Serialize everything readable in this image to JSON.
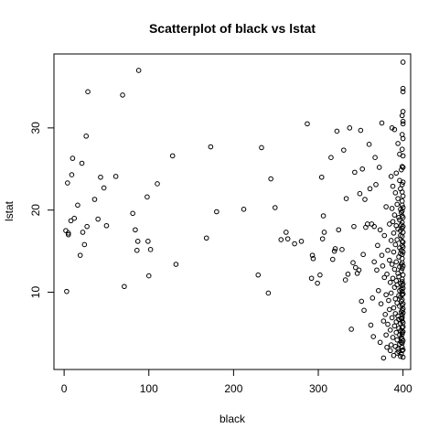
{
  "chart_data": {
    "type": "scatter",
    "title": "Scatterplot of black vs lstat",
    "xlabel": "black",
    "ylabel": "lstat",
    "xlim": [
      -12,
      409
    ],
    "ylim": [
      0.6,
      39
    ],
    "xticks": [
      0,
      100,
      200,
      300,
      400
    ],
    "yticks": [
      10,
      20,
      30
    ],
    "grid": false,
    "legend": "none",
    "marker": "open-circle",
    "color": "#000000",
    "points": [
      [
        2,
        17.5
      ],
      [
        3,
        10.1
      ],
      [
        4,
        23.3
      ],
      [
        5,
        17
      ],
      [
        5,
        17.2
      ],
      [
        8,
        18.7
      ],
      [
        9,
        24.3
      ],
      [
        10,
        26.3
      ],
      [
        12,
        19
      ],
      [
        16,
        20.6
      ],
      [
        19,
        14.5
      ],
      [
        21,
        25.7
      ],
      [
        22,
        17.3
      ],
      [
        24,
        15.8
      ],
      [
        26,
        29
      ],
      [
        27,
        18
      ],
      [
        28,
        34.4
      ],
      [
        36,
        21.3
      ],
      [
        40,
        18.9
      ],
      [
        43,
        24
      ],
      [
        47,
        22.7
      ],
      [
        50,
        18.1
      ],
      [
        61,
        24.1
      ],
      [
        69,
        34
      ],
      [
        71,
        10.7
      ],
      [
        81,
        19.6
      ],
      [
        84,
        17.6
      ],
      [
        86,
        15.1
      ],
      [
        87,
        16.2
      ],
      [
        88,
        37
      ],
      [
        98,
        21.6
      ],
      [
        99,
        16.2
      ],
      [
        100,
        12
      ],
      [
        102,
        15.2
      ],
      [
        110,
        23.2
      ],
      [
        128,
        26.6
      ],
      [
        132,
        13.4
      ],
      [
        168,
        16.6
      ],
      [
        173,
        27.7
      ],
      [
        180,
        19.8
      ],
      [
        212,
        20.1
      ],
      [
        229,
        12.1
      ],
      [
        233,
        27.6
      ],
      [
        241,
        9.9
      ],
      [
        244,
        23.8
      ],
      [
        249,
        20.3
      ],
      [
        256,
        16.4
      ],
      [
        262,
        17.3
      ],
      [
        264,
        16.5
      ],
      [
        272,
        15.9
      ],
      [
        280,
        16.2
      ],
      [
        287,
        30.5
      ],
      [
        292,
        11.7
      ],
      [
        293,
        14.5
      ],
      [
        294,
        14.1
      ],
      [
        299,
        11.1
      ],
      [
        302,
        12.1
      ],
      [
        304,
        24
      ],
      [
        305,
        16.5
      ],
      [
        306,
        19.3
      ],
      [
        307,
        17.3
      ],
      [
        315,
        26.4
      ],
      [
        317,
        14
      ],
      [
        319,
        15
      ],
      [
        320,
        15.3
      ],
      [
        322,
        29.6
      ],
      [
        324,
        17.6
      ],
      [
        328,
        15.2
      ],
      [
        330,
        27.3
      ],
      [
        332,
        11.5
      ],
      [
        333,
        21.4
      ],
      [
        335,
        12.2
      ],
      [
        337,
        30
      ],
      [
        339,
        5.5
      ],
      [
        341,
        13.6
      ],
      [
        342,
        18
      ],
      [
        343,
        24.6
      ],
      [
        344,
        13
      ],
      [
        346,
        12.3
      ],
      [
        348,
        12.7
      ],
      [
        349,
        22
      ],
      [
        350,
        29.7
      ],
      [
        351,
        8.9
      ],
      [
        352,
        25
      ],
      [
        353,
        14.6
      ],
      [
        354,
        7.8
      ],
      [
        355,
        21.3
      ],
      [
        356,
        17.9
      ],
      [
        358,
        18.3
      ],
      [
        360,
        28
      ],
      [
        361,
        22.6
      ],
      [
        362,
        6
      ],
      [
        363,
        18.3
      ],
      [
        364,
        9.3
      ],
      [
        365,
        4.6
      ],
      [
        366,
        18
      ],
      [
        366,
        13.7
      ],
      [
        367,
        26.4
      ],
      [
        368,
        23.1
      ],
      [
        369,
        12.7
      ],
      [
        370,
        15.7
      ],
      [
        371,
        10.2
      ],
      [
        372,
        25.2
      ],
      [
        373,
        3.9
      ],
      [
        373,
        17.6
      ],
      [
        374,
        8.6
      ],
      [
        375,
        30.6
      ],
      [
        375,
        14.5
      ],
      [
        376,
        13.2
      ],
      [
        377,
        6.5
      ],
      [
        377,
        2
      ],
      [
        378,
        16.9
      ],
      [
        378,
        11.8
      ],
      [
        379,
        7.3
      ],
      [
        380,
        9.7
      ],
      [
        380,
        4.8
      ],
      [
        380,
        20.4
      ],
      [
        381,
        12.2
      ],
      [
        381,
        3.3
      ],
      [
        382,
        15.1
      ],
      [
        382,
        6.1
      ],
      [
        383,
        9
      ],
      [
        384,
        18.3
      ],
      [
        384,
        13.9
      ],
      [
        384,
        7.9
      ],
      [
        385,
        5.4
      ],
      [
        385,
        11.2
      ],
      [
        385,
        2.9
      ],
      [
        386,
        24.1
      ],
      [
        386,
        16.3
      ],
      [
        386,
        9.9
      ],
      [
        386,
        3.6
      ],
      [
        387,
        30
      ],
      [
        387,
        20.2
      ],
      [
        387,
        13.4
      ],
      [
        387,
        6.9
      ],
      [
        388,
        18.6
      ],
      [
        388,
        11.7
      ],
      [
        388,
        4.5
      ],
      [
        388,
        22.9
      ],
      [
        389,
        14.9
      ],
      [
        389,
        8.1
      ],
      [
        389,
        2.3
      ],
      [
        389,
        17.2
      ],
      [
        390,
        10.6
      ],
      [
        390,
        5.9
      ],
      [
        390,
        29.8
      ],
      [
        390,
        19.4
      ],
      [
        390,
        12.8
      ],
      [
        391,
        7.4
      ],
      [
        391,
        3.4
      ],
      [
        391,
        22.1
      ],
      [
        391,
        15.8
      ],
      [
        391,
        9.2
      ],
      [
        392,
        5.1
      ],
      [
        392,
        18.1
      ],
      [
        392,
        11.4
      ],
      [
        392,
        6.4
      ],
      [
        392,
        24.5
      ],
      [
        392,
        13.7
      ],
      [
        393,
        8.7
      ],
      [
        393,
        2.6
      ],
      [
        393,
        20.7
      ],
      [
        393,
        16.4
      ],
      [
        393,
        10.9
      ],
      [
        393,
        4.2
      ],
      [
        394,
        28.1
      ],
      [
        394,
        17.7
      ],
      [
        394,
        12.3
      ],
      [
        394,
        7.1
      ],
      [
        394,
        3.1
      ],
      [
        394,
        21.4
      ],
      [
        395,
        14.3
      ],
      [
        395,
        9.6
      ],
      [
        395,
        5.6
      ],
      [
        395,
        19.1
      ],
      [
        395,
        11.9
      ],
      [
        395,
        6.7
      ],
      [
        395,
        2.8
      ],
      [
        396,
        23.6
      ],
      [
        396,
        15.4
      ],
      [
        396,
        10.2
      ],
      [
        396,
        4.8
      ],
      [
        396,
        18.8
      ],
      [
        396,
        13.1
      ],
      [
        396,
        8.3
      ],
      [
        396,
        3.7
      ],
      [
        396,
        26.8
      ],
      [
        397,
        16.9
      ],
      [
        397,
        11.1
      ],
      [
        397,
        6.2
      ],
      [
        397,
        20.1
      ],
      [
        397,
        14.7
      ],
      [
        397,
        9.4
      ],
      [
        397,
        5.3
      ],
      [
        397,
        2.2
      ],
      [
        397,
        22.6
      ],
      [
        397,
        17.5
      ],
      [
        398,
        12.6
      ],
      [
        398,
        7.6
      ],
      [
        398,
        3.9
      ],
      [
        398,
        19.7
      ],
      [
        398,
        15.1
      ],
      [
        398,
        10.4
      ],
      [
        398,
        6.8
      ],
      [
        398,
        24.9
      ],
      [
        398,
        18.2
      ],
      [
        398,
        13.4
      ],
      [
        398,
        8.9
      ],
      [
        398,
        4.5
      ],
      [
        398,
        2.5
      ],
      [
        399,
        21.1
      ],
      [
        399,
        16.2
      ],
      [
        399,
        11.6
      ],
      [
        399,
        7.8
      ],
      [
        399,
        5.1
      ],
      [
        399,
        29.2
      ],
      [
        399,
        19.3
      ],
      [
        399,
        14.1
      ],
      [
        399,
        9.7
      ],
      [
        399,
        6.5
      ],
      [
        399,
        3.3
      ],
      [
        399,
        23.1
      ],
      [
        399,
        17.8
      ],
      [
        399,
        12.9
      ],
      [
        399,
        8.4
      ],
      [
        399,
        4.9
      ],
      [
        399,
        27.4
      ],
      [
        399,
        20.6
      ],
      [
        399,
        15.7
      ],
      [
        399,
        10.8
      ],
      [
        399,
        7.2
      ],
      [
        399,
        2.9
      ],
      [
        399,
        18.5
      ],
      [
        399,
        13.6
      ],
      [
        399,
        9.1
      ],
      [
        399,
        5.7
      ],
      [
        399,
        31.5
      ],
      [
        399,
        22.2
      ],
      [
        399,
        16.8
      ],
      [
        399,
        11.3
      ],
      [
        399,
        6.9
      ],
      [
        399,
        3.8
      ],
      [
        399,
        25.3
      ],
      [
        399,
        19.9
      ],
      [
        399,
        14.6
      ],
      [
        399,
        10.1
      ],
      [
        399,
        4.3
      ],
      [
        400,
        38
      ],
      [
        400,
        34.4
      ],
      [
        400,
        34.8
      ],
      [
        400,
        30.8
      ],
      [
        400,
        30.5
      ],
      [
        400,
        32
      ],
      [
        400,
        28.7
      ],
      [
        400,
        26.6
      ],
      [
        400,
        25.2
      ],
      [
        400,
        23.4
      ],
      [
        400,
        21.7
      ],
      [
        400,
        20.3
      ],
      [
        400,
        19.1
      ],
      [
        400,
        17.3
      ],
      [
        400,
        16.1
      ],
      [
        400,
        14.9
      ],
      [
        400,
        13.2
      ],
      [
        400,
        12.1
      ],
      [
        400,
        11
      ],
      [
        400,
        9.8
      ],
      [
        400,
        8.6
      ],
      [
        400,
        7.5
      ],
      [
        400,
        6.3
      ],
      [
        400,
        5.2
      ],
      [
        400,
        4.1
      ],
      [
        400,
        3
      ],
      [
        400,
        2.1
      ],
      [
        400,
        18
      ],
      [
        400,
        15.5
      ],
      [
        400,
        10.5
      ],
      [
        400,
        8
      ],
      [
        400,
        5.8
      ]
    ]
  }
}
